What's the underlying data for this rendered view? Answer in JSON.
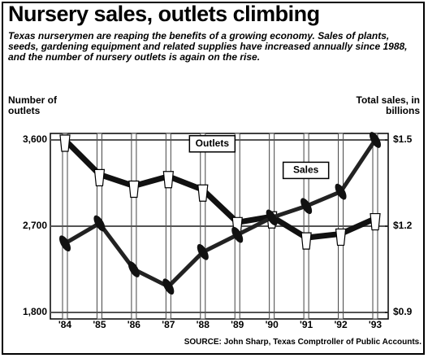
{
  "chart_data": {
    "type": "line",
    "title": "Nursery sales, outlets climbing",
    "subtitle": "Texas nurserymen are reaping the benefits of a growing economy. Sales of plants, seeds, gardening equipment and related supplies have increased annually since 1988, and the number of nursery outlets is again on the rise.",
    "y_label": "Number of outlets",
    "y2_label": "Total sales, in billions",
    "source": "SOURCE: John Sharp, Texas Comptroller of Public Accounts.",
    "categories": [
      "'84",
      "'85",
      "'86",
      "'87",
      "'88",
      "'89",
      "'90",
      "'91",
      "'92",
      "'93"
    ],
    "series": [
      {
        "name": "Outlets",
        "color": "#111111",
        "values": [
          3600,
          3240,
          3120,
          3220,
          3080,
          2740,
          2800,
          2580,
          2620,
          2780
        ]
      },
      {
        "name": "Sales",
        "color": "#222222",
        "axis": "y2",
        "values": [
          1.14,
          1.21,
          1.05,
          0.99,
          1.11,
          1.17,
          1.23,
          1.27,
          1.32,
          1.5
        ]
      }
    ],
    "ylim": [
      1800,
      3600
    ],
    "yticks": [
      {
        "value": 1800,
        "label": "1,800"
      },
      {
        "value": 2700,
        "label": "2,700"
      },
      {
        "value": 3600,
        "label": "3,600"
      }
    ],
    "y2lim": [
      0.9,
      1.5
    ],
    "y2ticks": [
      {
        "value": 0.9,
        "label": "$0.9"
      },
      {
        "value": 1.2,
        "label": "$1.2"
      },
      {
        "value": 1.5,
        "label": "$1.5"
      }
    ],
    "grid": true
  }
}
